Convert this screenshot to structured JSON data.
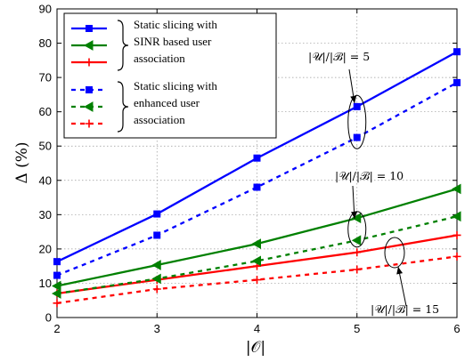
{
  "chart_data": {
    "type": "line",
    "xlabel": "|𝒪|",
    "ylabel": "Δ (%)",
    "xlim": [
      2,
      6
    ],
    "ylim": [
      0,
      90
    ],
    "xticks": [
      2,
      3,
      4,
      5,
      6
    ],
    "yticks": [
      0,
      10,
      20,
      30,
      40,
      50,
      60,
      70,
      80,
      90
    ],
    "grid": true,
    "legend_placement": "top-left",
    "legend_groups": [
      {
        "label_lines": [
          "Static slicing with",
          "SINR based user",
          "association"
        ]
      },
      {
        "label_lines": [
          "Static slicing with",
          "enhanced user",
          "association"
        ]
      }
    ],
    "x": [
      2,
      3,
      4,
      5,
      6
    ],
    "series": [
      {
        "group": 0,
        "ratio": 5,
        "color": "#0000ff",
        "dash": "solid",
        "marker": "square",
        "values": [
          16.3,
          30.2,
          46.5,
          61.5,
          77.5
        ]
      },
      {
        "group": 0,
        "ratio": 10,
        "color": "#008000",
        "dash": "solid",
        "marker": "triangle-left",
        "values": [
          9.2,
          15.3,
          21.5,
          29.0,
          37.5
        ]
      },
      {
        "group": 0,
        "ratio": 15,
        "color": "#ff0000",
        "dash": "solid",
        "marker": "plus",
        "values": [
          7.0,
          11.0,
          15.0,
          19.0,
          24.0
        ]
      },
      {
        "group": 1,
        "ratio": 5,
        "color": "#0000ff",
        "dash": "dotted",
        "marker": "square",
        "values": [
          12.3,
          24.0,
          38.0,
          52.5,
          68.5
        ]
      },
      {
        "group": 1,
        "ratio": 10,
        "color": "#008000",
        "dash": "dotted",
        "marker": "triangle-left",
        "values": [
          7.0,
          11.3,
          16.5,
          22.5,
          29.5
        ]
      },
      {
        "group": 1,
        "ratio": 15,
        "color": "#ff0000",
        "dash": "dotted",
        "marker": "plus",
        "values": [
          4.2,
          8.3,
          11.0,
          14.0,
          17.8
        ]
      }
    ],
    "annotations": [
      {
        "text": "|𝒰|/|ℬ| = 5",
        "ratio": 5
      },
      {
        "text": "|𝒰|/|ℬ| = 10",
        "ratio": 10
      },
      {
        "text": "|𝒰|/|ℬ| = 15",
        "ratio": 15
      }
    ]
  }
}
